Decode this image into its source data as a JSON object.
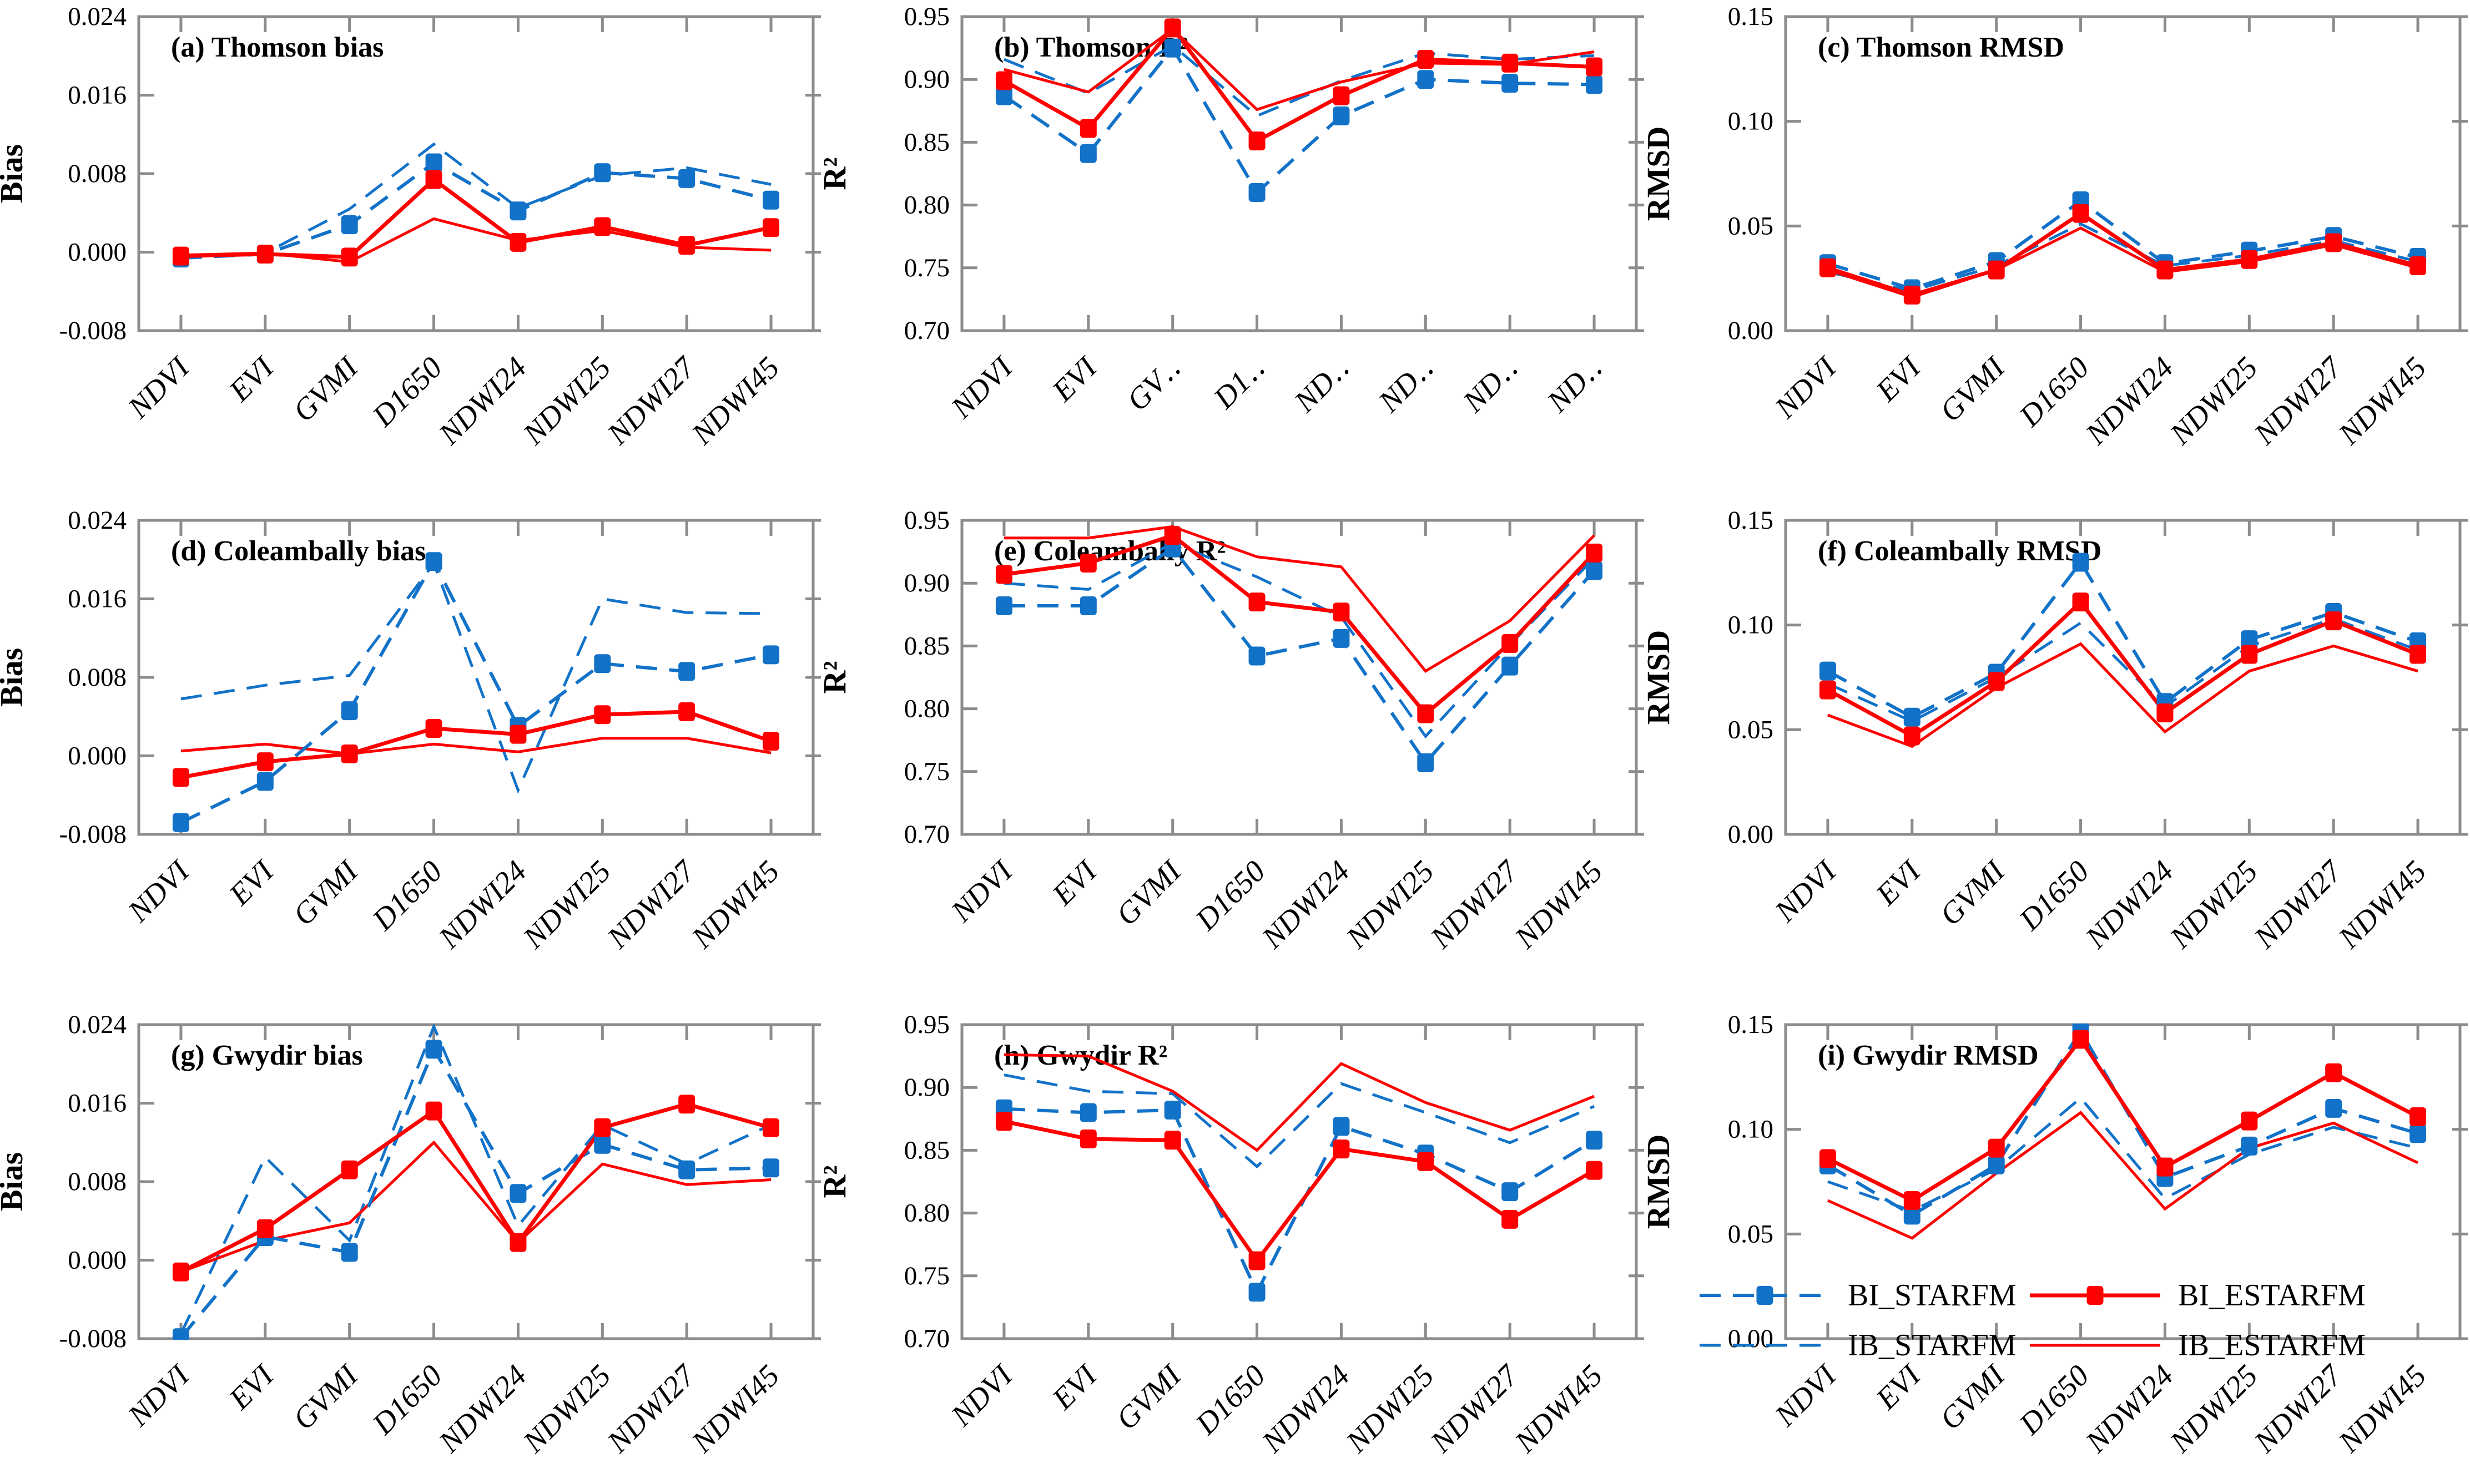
{
  "figure": {
    "kind": "3x3 multi-panel line chart figure",
    "sites": [
      "Thomson",
      "Coleambally",
      "Gwydir"
    ],
    "metrics": [
      "bias",
      "R²",
      "RMSD"
    ]
  },
  "colors": {
    "blue_series": "#1272C8",
    "red_series": "#FF0000",
    "axis_gray": "#8C8C8C",
    "text_black": "#000000",
    "background": "#FFFFFF"
  },
  "series_styles": [
    {
      "id": "BI_STARFM",
      "color": "#1272C8",
      "dashed": true,
      "marker": true,
      "width": 6
    },
    {
      "id": "BI_ESTARFM",
      "color": "#FF0000",
      "dashed": false,
      "marker": true,
      "width": 7
    },
    {
      "id": "IB_STARFM",
      "color": "#1272C8",
      "dashed": true,
      "marker": false,
      "width": 5
    },
    {
      "id": "IB_ESTARFM",
      "color": "#FF0000",
      "dashed": false,
      "marker": false,
      "width": 5
    }
  ],
  "legend": {
    "location": "inside panel (i), bottom",
    "items": [
      {
        "label": "BI_STARFM",
        "series": "BI_STARFM"
      },
      {
        "label": "BI_ESTARFM",
        "series": "BI_ESTARFM"
      },
      {
        "label": "IB_STARFM",
        "series": "IB_STARFM"
      },
      {
        "label": "IB_ESTARFM",
        "series": "IB_ESTARFM"
      }
    ]
  },
  "axes": {
    "bias": {
      "label": "Bias",
      "min": -0.008,
      "max": 0.024,
      "tick_values": [
        0.024,
        0.016,
        0.008,
        0.0,
        -0.008
      ],
      "tick_labels": [
        "0.024",
        "0.016",
        "0.008",
        "0.000",
        "-0.008"
      ]
    },
    "r2": {
      "label": "R²",
      "min": 0.7,
      "max": 0.95,
      "tick_values": [
        0.95,
        0.9,
        0.85,
        0.8,
        0.75,
        0.7
      ],
      "tick_labels": [
        "0.95",
        "0.90",
        "0.85",
        "0.80",
        "0.75",
        "0.70"
      ]
    },
    "rmsd": {
      "label": "RMSD",
      "min": 0.0,
      "max": 0.15,
      "tick_values": [
        0.15,
        0.1,
        0.05,
        0.0
      ],
      "tick_labels": [
        "0.15",
        "0.10",
        "0.05",
        "0.00"
      ]
    }
  },
  "categories": [
    "NDVI",
    "EVI",
    "GVMI",
    "D1650",
    "NDWI24",
    "NDWI25",
    "NDWI27",
    "NDWI45"
  ],
  "chart_data": [
    {
      "id": "a",
      "type": "line",
      "title": "(a) Thomson bias",
      "site": "Thomson",
      "metric": "bias",
      "axis": "bias",
      "x_labels": [
        "NDVI",
        "EVI",
        "GVMI",
        "D1650",
        "NDWI24",
        "NDWI25",
        "NDWI27",
        "NDWI45"
      ],
      "series": [
        {
          "name": "BI_STARFM",
          "values": [
            -0.0006,
            -0.0002,
            0.0028,
            0.0091,
            0.0042,
            0.0081,
            0.0075,
            0.0053
          ]
        },
        {
          "name": "BI_ESTARFM",
          "values": [
            -0.0004,
            -0.0002,
            -0.0005,
            0.0074,
            0.001,
            0.0026,
            0.0007,
            0.0025
          ]
        },
        {
          "name": "IB_STARFM",
          "values": [
            -0.0004,
            -0.0001,
            0.0044,
            0.011,
            0.0045,
            0.0078,
            0.0086,
            0.0069
          ]
        },
        {
          "name": "IB_ESTARFM",
          "values": [
            -0.0003,
            -0.0001,
            -0.001,
            0.0034,
            0.0012,
            0.0022,
            0.0005,
            0.0002
          ]
        }
      ]
    },
    {
      "id": "b",
      "type": "line",
      "title": "(b) Thomson R²",
      "site": "Thomson",
      "metric": "R²",
      "axis": "r2",
      "x_labels": [
        "NDVI",
        "EVI",
        "GV‥",
        "D1‥",
        "ND‥",
        "ND‥",
        "ND‥",
        "ND‥"
      ],
      "series": [
        {
          "name": "BI_STARFM",
          "values": [
            0.887,
            0.841,
            0.925,
            0.81,
            0.871,
            0.9,
            0.897,
            0.896
          ]
        },
        {
          "name": "BI_ESTARFM",
          "values": [
            0.899,
            0.861,
            0.941,
            0.851,
            0.887,
            0.916,
            0.913,
            0.91
          ]
        },
        {
          "name": "IB_STARFM",
          "values": [
            0.916,
            0.889,
            0.927,
            0.871,
            0.899,
            0.921,
            0.916,
            0.919
          ]
        },
        {
          "name": "IB_ESTARFM",
          "values": [
            0.908,
            0.89,
            0.94,
            0.876,
            0.898,
            0.913,
            0.912,
            0.922
          ]
        }
      ]
    },
    {
      "id": "c",
      "type": "line",
      "title": "(c) Thomson RMSD",
      "site": "Thomson",
      "metric": "RMSD",
      "axis": "rmsd",
      "x_labels": [
        "NDVI",
        "EVI",
        "GVMI",
        "D1650",
        "NDWI24",
        "NDWI25",
        "NDWI27",
        "NDWI45"
      ],
      "series": [
        {
          "name": "BI_STARFM",
          "values": [
            0.032,
            0.02,
            0.033,
            0.062,
            0.032,
            0.038,
            0.045,
            0.035
          ]
        },
        {
          "name": "BI_ESTARFM",
          "values": [
            0.03,
            0.017,
            0.029,
            0.056,
            0.029,
            0.034,
            0.042,
            0.031
          ]
        },
        {
          "name": "IB_STARFM",
          "values": [
            0.028,
            0.019,
            0.031,
            0.051,
            0.031,
            0.036,
            0.043,
            0.033
          ]
        },
        {
          "name": "IB_ESTARFM",
          "values": [
            0.029,
            0.016,
            0.029,
            0.049,
            0.028,
            0.033,
            0.041,
            0.03
          ]
        }
      ]
    },
    {
      "id": "d",
      "type": "line",
      "title": "(d) Coleambally bias",
      "site": "Coleambally",
      "metric": "bias",
      "axis": "bias",
      "x_labels": [
        "NDVI",
        "EVI",
        "GVMI",
        "D1650",
        "NDWI24",
        "NDWI25",
        "NDWI27",
        "NDWI45"
      ],
      "series": [
        {
          "name": "BI_STARFM",
          "values": [
            -0.0068,
            -0.0026,
            0.0046,
            0.0198,
            0.003,
            0.0094,
            0.0086,
            0.0103
          ]
        },
        {
          "name": "BI_ESTARFM",
          "values": [
            -0.0022,
            -0.0006,
            0.0002,
            0.0028,
            0.0022,
            0.0042,
            0.0045,
            0.0015
          ]
        },
        {
          "name": "IB_STARFM",
          "values": [
            0.0058,
            0.0072,
            0.0082,
            0.0196,
            -0.0035,
            0.016,
            0.0146,
            0.0145
          ]
        },
        {
          "name": "IB_ESTARFM",
          "values": [
            0.0005,
            0.0012,
            0.0002,
            0.0012,
            0.0004,
            0.0018,
            0.0018,
            0.0003
          ]
        }
      ]
    },
    {
      "id": "e",
      "type": "line",
      "title": "(e) Coleambally R²",
      "site": "Coleambally",
      "metric": "R²",
      "axis": "r2",
      "x_labels": [
        "NDVI",
        "EVI",
        "GVMI",
        "D1650",
        "NDWI24",
        "NDWI25",
        "NDWI27",
        "NDWI45"
      ],
      "series": [
        {
          "name": "BI_STARFM",
          "values": [
            0.882,
            0.882,
            0.928,
            0.842,
            0.856,
            0.757,
            0.834,
            0.91
          ]
        },
        {
          "name": "BI_ESTARFM",
          "values": [
            0.907,
            0.916,
            0.938,
            0.885,
            0.877,
            0.796,
            0.852,
            0.924
          ]
        },
        {
          "name": "IB_STARFM",
          "values": [
            0.9,
            0.895,
            0.932,
            0.905,
            0.873,
            0.778,
            0.851,
            0.92
          ]
        },
        {
          "name": "IB_ESTARFM",
          "values": [
            0.936,
            0.936,
            0.945,
            0.921,
            0.913,
            0.83,
            0.87,
            0.938
          ]
        }
      ]
    },
    {
      "id": "f",
      "type": "line",
      "title": "(f) Coleambally RMSD",
      "site": "Coleambally",
      "metric": "RMSD",
      "axis": "rmsd",
      "x_labels": [
        "NDVI",
        "EVI",
        "GVMI",
        "D1650",
        "NDWI24",
        "NDWI25",
        "NDWI27",
        "NDWI45"
      ],
      "series": [
        {
          "name": "BI_STARFM",
          "values": [
            0.078,
            0.056,
            0.077,
            0.13,
            0.063,
            0.093,
            0.106,
            0.092
          ]
        },
        {
          "name": "BI_ESTARFM",
          "values": [
            0.069,
            0.047,
            0.073,
            0.111,
            0.058,
            0.086,
            0.102,
            0.086
          ]
        },
        {
          "name": "IB_STARFM",
          "values": [
            0.072,
            0.054,
            0.075,
            0.101,
            0.061,
            0.09,
            0.103,
            0.088
          ]
        },
        {
          "name": "IB_ESTARFM",
          "values": [
            0.057,
            0.042,
            0.07,
            0.091,
            0.049,
            0.078,
            0.09,
            0.078
          ]
        }
      ]
    },
    {
      "id": "g",
      "type": "line",
      "title": "(g) Gwydir bias",
      "site": "Gwydir",
      "metric": "bias",
      "axis": "bias",
      "x_labels": [
        "NDVI",
        "EVI",
        "GVMI",
        "D1650",
        "NDWI24",
        "NDWI25",
        "NDWI27",
        "NDWI45"
      ],
      "series": [
        {
          "name": "BI_STARFM",
          "values": [
            -0.0079,
            0.0024,
            0.0008,
            0.0215,
            0.0068,
            0.0118,
            0.0092,
            0.0094
          ]
        },
        {
          "name": "BI_ESTARFM",
          "values": [
            -0.0012,
            0.0032,
            0.0092,
            0.0152,
            0.0018,
            0.0135,
            0.0159,
            0.0135
          ]
        },
        {
          "name": "IB_STARFM",
          "values": [
            -0.0075,
            0.0105,
            0.002,
            0.0238,
            0.0035,
            0.0138,
            0.0098,
            0.0138
          ]
        },
        {
          "name": "IB_ESTARFM",
          "values": [
            -0.0012,
            0.002,
            0.0038,
            0.012,
            0.0018,
            0.0098,
            0.0077,
            0.0082
          ]
        }
      ]
    },
    {
      "id": "h",
      "type": "line",
      "title": "(h) Gwydir R²",
      "site": "Gwydir",
      "metric": "R²",
      "axis": "r2",
      "x_labels": [
        "NDVI",
        "EVI",
        "GVMI",
        "D1650",
        "NDWI24",
        "NDWI25",
        "NDWI27",
        "NDWI45"
      ],
      "series": [
        {
          "name": "BI_STARFM",
          "values": [
            0.883,
            0.88,
            0.882,
            0.737,
            0.869,
            0.847,
            0.817,
            0.858
          ]
        },
        {
          "name": "BI_ESTARFM",
          "values": [
            0.873,
            0.859,
            0.858,
            0.762,
            0.851,
            0.841,
            0.795,
            0.834
          ]
        },
        {
          "name": "IB_STARFM",
          "values": [
            0.91,
            0.897,
            0.895,
            0.837,
            0.903,
            0.88,
            0.856,
            0.885
          ]
        },
        {
          "name": "IB_ESTARFM",
          "values": [
            0.926,
            0.925,
            0.897,
            0.85,
            0.919,
            0.888,
            0.866,
            0.893
          ]
        }
      ]
    },
    {
      "id": "i",
      "type": "line",
      "title": "(i) Gwydir RMSD",
      "site": "Gwydir",
      "metric": "RMSD",
      "axis": "rmsd",
      "x_labels": [
        "NDVI",
        "EVI",
        "GVMI",
        "D1650",
        "NDWI24",
        "NDWI25",
        "NDWI27",
        "NDWI45"
      ],
      "has_legend": true,
      "series": [
        {
          "name": "BI_STARFM",
          "values": [
            0.083,
            0.059,
            0.083,
            0.147,
            0.077,
            0.092,
            0.11,
            0.098
          ]
        },
        {
          "name": "BI_ESTARFM",
          "values": [
            0.086,
            0.066,
            0.091,
            0.143,
            0.082,
            0.104,
            0.127,
            0.106
          ]
        },
        {
          "name": "IB_STARFM",
          "values": [
            0.075,
            0.061,
            0.081,
            0.115,
            0.067,
            0.088,
            0.101,
            0.091
          ]
        },
        {
          "name": "IB_ESTARFM",
          "values": [
            0.066,
            0.048,
            0.079,
            0.108,
            0.062,
            0.091,
            0.103,
            0.084
          ]
        }
      ]
    }
  ]
}
